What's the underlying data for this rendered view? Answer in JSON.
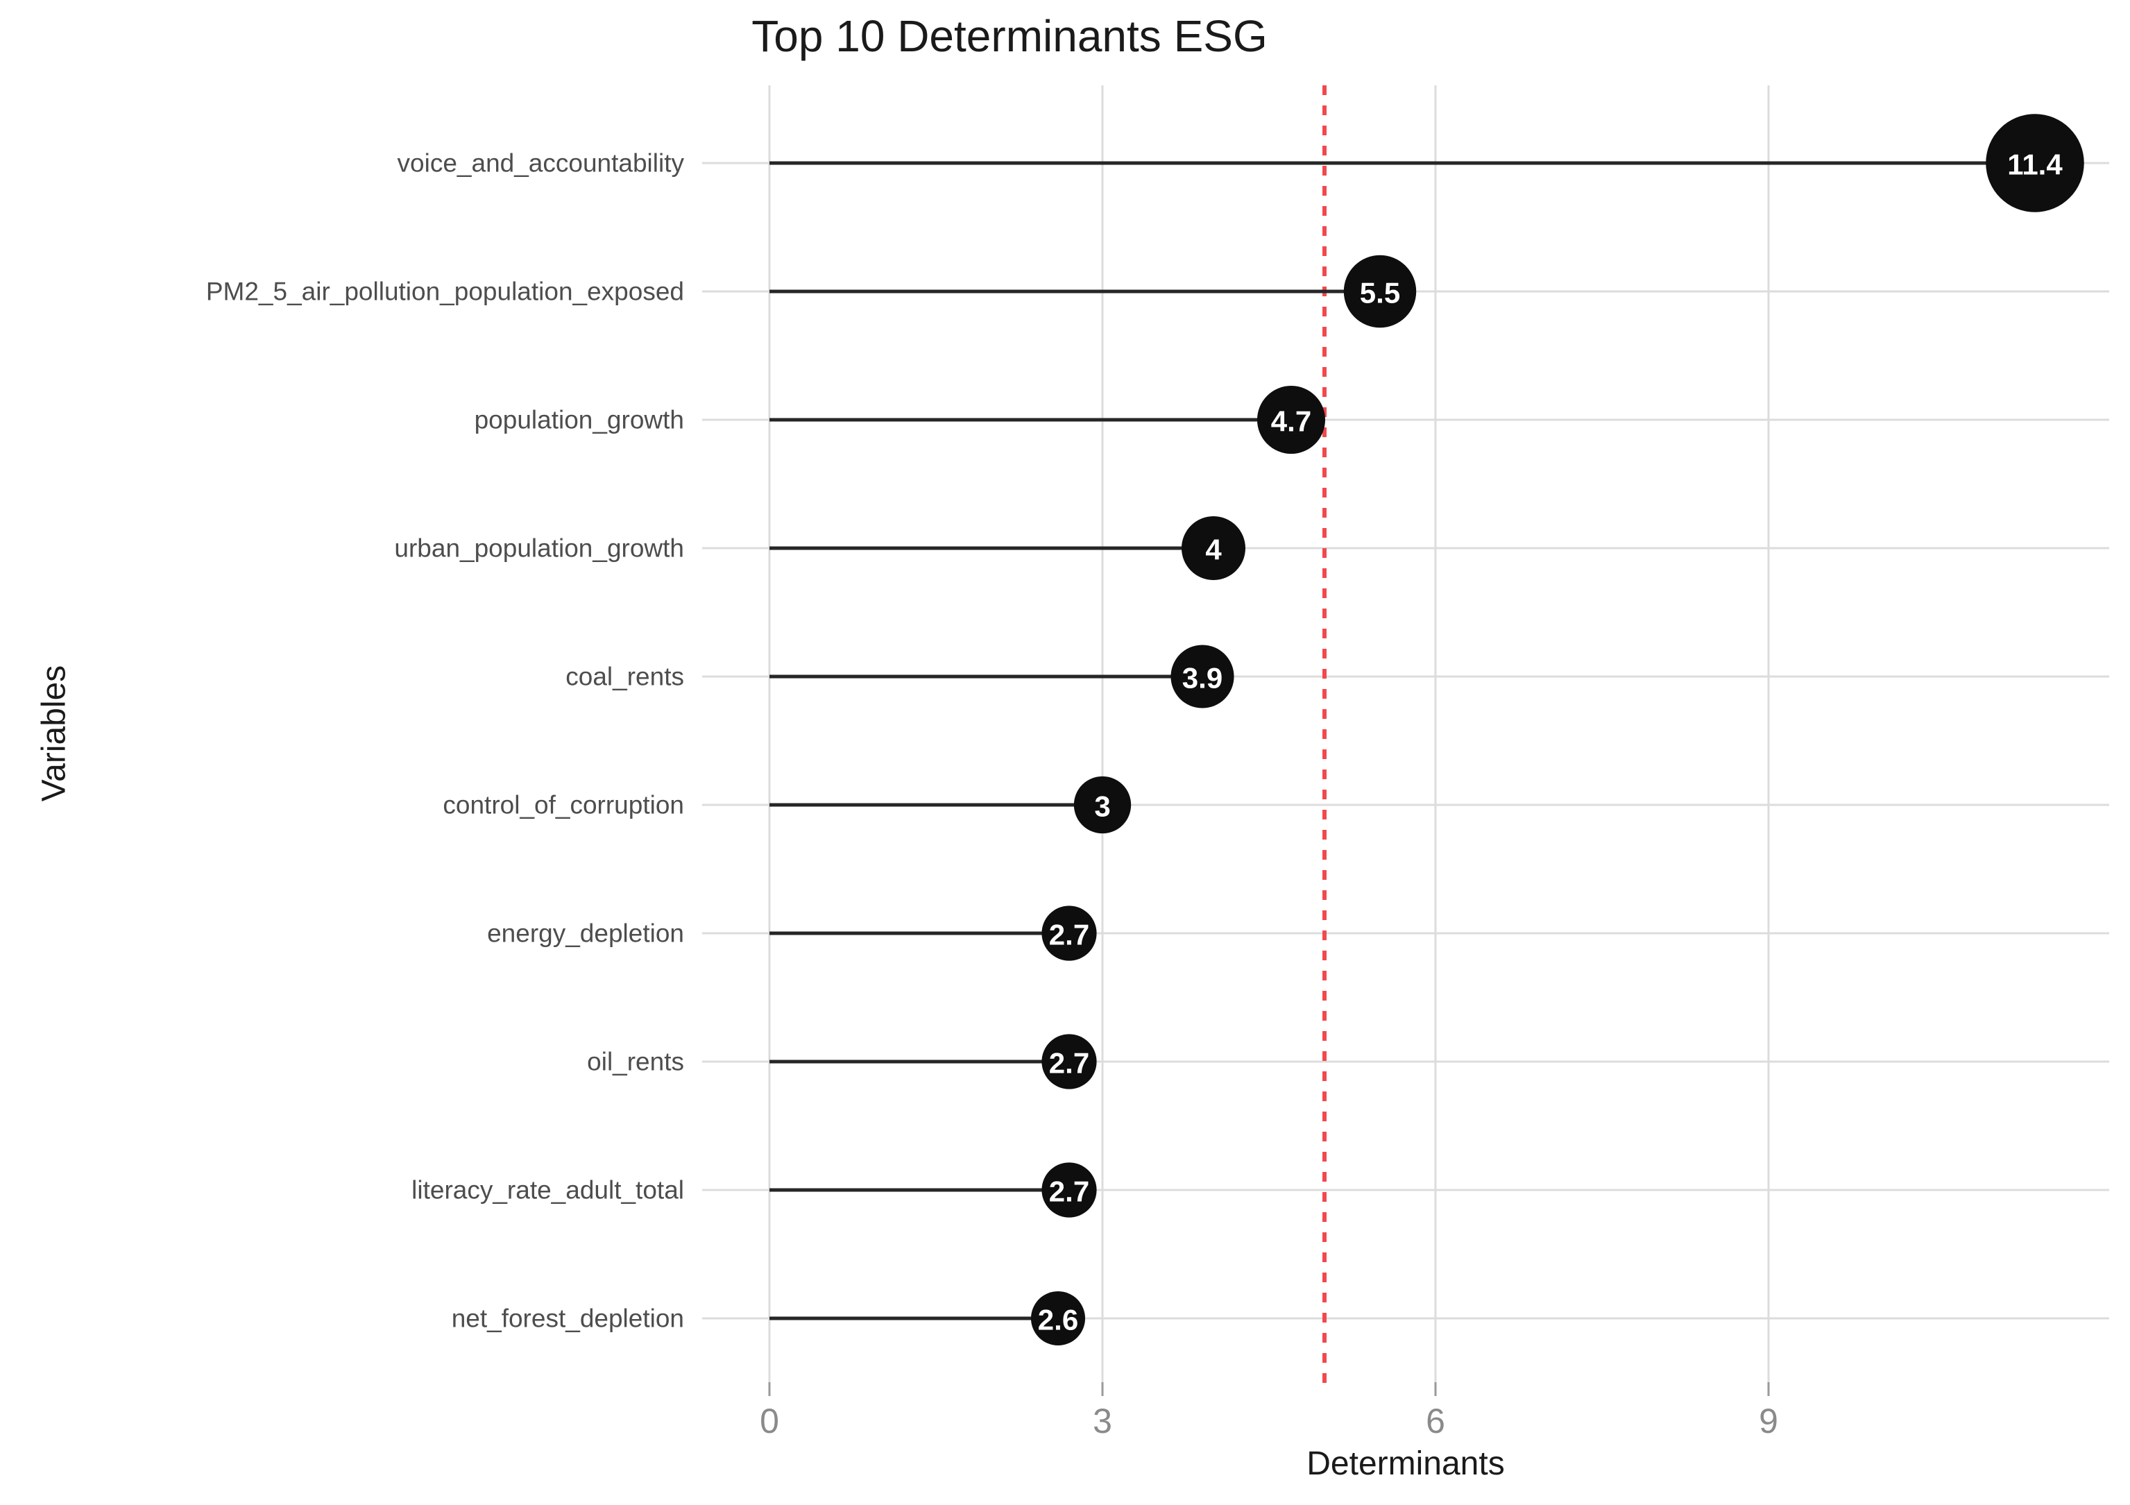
{
  "chart_data": {
    "type": "scatter",
    "style": "horizontal-lollipop",
    "title": "Top 10 Determinants ESG",
    "xlabel": "Determinants",
    "ylabel": "Variables",
    "categories": [
      "voice_and_accountability",
      "PM2_5_air_pollution_population_exposed",
      "population_growth",
      "urban_population_growth",
      "coal_rents",
      "control_of_corruption",
      "energy_depletion",
      "oil_rents",
      "literacy_rate_adult_total",
      "net_forest_depletion"
    ],
    "values": [
      11.4,
      5.5,
      4.7,
      4,
      3.9,
      3,
      2.7,
      2.7,
      2.7,
      2.6
    ],
    "value_labels": [
      "11.4",
      "5.5",
      "4.7",
      "4",
      "3.9",
      "3",
      "2.7",
      "2.7",
      "2.7",
      "2.6"
    ],
    "x_tick_labels": [
      "0",
      "3",
      "6",
      "9"
    ],
    "x_tick_values": [
      0,
      3,
      6,
      9
    ],
    "xlim": [
      -0.6,
      12.07
    ],
    "grid": "major-only",
    "legend": false,
    "reference_line": {
      "x": 5,
      "style": "dashed"
    },
    "colors": {
      "point_fill": "#0e0e0e",
      "point_label": "#ffffff",
      "stem": "#262626",
      "grid": "#dcdcdc",
      "tick_mark": "#9a9a9a",
      "axis_tick_text": "#8a8a8a",
      "category_text": "#4d4d4d",
      "title_text": "#1a1a1a",
      "axis_title_text": "#1a1a1a",
      "reference": "#f1494e"
    }
  }
}
